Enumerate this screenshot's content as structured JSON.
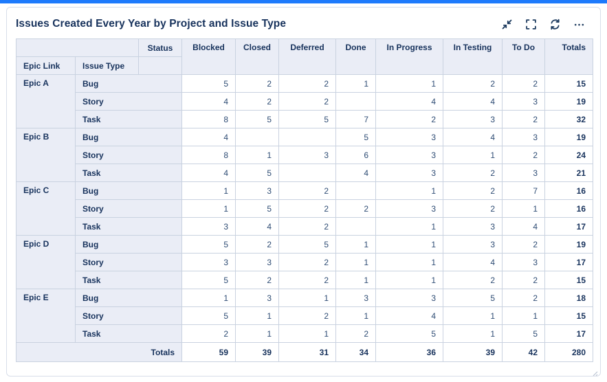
{
  "colors": {
    "accent_bar": "#1D7AFC",
    "navy_text": "#17325C",
    "number_text": "#2E4C74",
    "header_bg": "#EAEDF6",
    "grid_border": "#C9D2E0",
    "card_border": "#D8DEE9"
  },
  "header": {
    "title": "Issues Created Every Year by Project and Issue Type",
    "controls": [
      {
        "icon": "collapse-icon"
      },
      {
        "icon": "fullscreen-icon"
      },
      {
        "icon": "refresh-icon"
      },
      {
        "icon": "more-icon"
      }
    ]
  },
  "table": {
    "status_label": "Status",
    "epic_link_label": "Epic Link",
    "issue_type_label": "Issue Type",
    "columns": [
      "Blocked",
      "Closed",
      "Deferred",
      "Done",
      "In Progress",
      "In Testing",
      "To Do"
    ],
    "totals_label": "Totals",
    "groups": [
      {
        "epic": "Epic A",
        "rows": [
          {
            "type": "Bug",
            "values": [
              "5",
              "2",
              "2",
              "1",
              "1",
              "2",
              "2"
            ],
            "total": "15"
          },
          {
            "type": "Story",
            "values": [
              "4",
              "2",
              "2",
              "",
              "4",
              "4",
              "3"
            ],
            "total": "19"
          },
          {
            "type": "Task",
            "values": [
              "8",
              "5",
              "5",
              "7",
              "2",
              "3",
              "2"
            ],
            "total": "32"
          }
        ]
      },
      {
        "epic": "Epic B",
        "rows": [
          {
            "type": "Bug",
            "values": [
              "4",
              "",
              "",
              "5",
              "3",
              "4",
              "3"
            ],
            "total": "19"
          },
          {
            "type": "Story",
            "values": [
              "8",
              "1",
              "3",
              "6",
              "3",
              "1",
              "2"
            ],
            "total": "24"
          },
          {
            "type": "Task",
            "values": [
              "4",
              "5",
              "",
              "4",
              "3",
              "2",
              "3"
            ],
            "total": "21"
          }
        ]
      },
      {
        "epic": "Epic C",
        "rows": [
          {
            "type": "Bug",
            "values": [
              "1",
              "3",
              "2",
              "",
              "1",
              "2",
              "7"
            ],
            "total": "16"
          },
          {
            "type": "Story",
            "values": [
              "1",
              "5",
              "2",
              "2",
              "3",
              "2",
              "1"
            ],
            "total": "16"
          },
          {
            "type": "Task",
            "values": [
              "3",
              "4",
              "2",
              "",
              "1",
              "3",
              "4"
            ],
            "total": "17"
          }
        ]
      },
      {
        "epic": "Epic D",
        "rows": [
          {
            "type": "Bug",
            "values": [
              "5",
              "2",
              "5",
              "1",
              "1",
              "3",
              "2"
            ],
            "total": "19"
          },
          {
            "type": "Story",
            "values": [
              "3",
              "3",
              "2",
              "1",
              "1",
              "4",
              "3"
            ],
            "total": "17"
          },
          {
            "type": "Task",
            "values": [
              "5",
              "2",
              "2",
              "1",
              "1",
              "2",
              "2"
            ],
            "total": "15"
          }
        ]
      },
      {
        "epic": "Epic E",
        "rows": [
          {
            "type": "Bug",
            "values": [
              "1",
              "3",
              "1",
              "3",
              "3",
              "5",
              "2"
            ],
            "total": "18"
          },
          {
            "type": "Story",
            "values": [
              "5",
              "1",
              "2",
              "1",
              "4",
              "1",
              "1"
            ],
            "total": "15"
          },
          {
            "type": "Task",
            "values": [
              "2",
              "1",
              "1",
              "2",
              "5",
              "1",
              "5"
            ],
            "total": "17"
          }
        ]
      }
    ],
    "grand_totals": {
      "label": "Totals",
      "values": [
        "59",
        "39",
        "31",
        "34",
        "36",
        "39",
        "42"
      ],
      "total": "280"
    }
  },
  "chart_data": {
    "type": "table",
    "title": "Issues Created Every Year by Project and Issue Type",
    "row_dims": [
      "Epic Link",
      "Issue Type"
    ],
    "col_dim": "Status",
    "columns": [
      "Blocked",
      "Closed",
      "Deferred",
      "Done",
      "In Progress",
      "In Testing",
      "To Do",
      "Totals"
    ],
    "rows": [
      [
        "Epic A",
        "Bug",
        5,
        2,
        2,
        1,
        1,
        2,
        2,
        15
      ],
      [
        "Epic A",
        "Story",
        4,
        2,
        2,
        null,
        4,
        4,
        3,
        19
      ],
      [
        "Epic A",
        "Task",
        8,
        5,
        5,
        7,
        2,
        3,
        2,
        32
      ],
      [
        "Epic B",
        "Bug",
        4,
        null,
        null,
        5,
        3,
        4,
        3,
        19
      ],
      [
        "Epic B",
        "Story",
        8,
        1,
        3,
        6,
        3,
        1,
        2,
        24
      ],
      [
        "Epic B",
        "Task",
        4,
        5,
        null,
        4,
        3,
        2,
        3,
        21
      ],
      [
        "Epic C",
        "Bug",
        1,
        3,
        2,
        null,
        1,
        2,
        7,
        16
      ],
      [
        "Epic C",
        "Story",
        1,
        5,
        2,
        2,
        3,
        2,
        1,
        16
      ],
      [
        "Epic C",
        "Task",
        3,
        4,
        2,
        null,
        1,
        3,
        4,
        17
      ],
      [
        "Epic D",
        "Bug",
        5,
        2,
        5,
        1,
        1,
        3,
        2,
        19
      ],
      [
        "Epic D",
        "Story",
        3,
        3,
        2,
        1,
        1,
        4,
        3,
        17
      ],
      [
        "Epic D",
        "Task",
        5,
        2,
        2,
        1,
        1,
        2,
        2,
        15
      ],
      [
        "Epic E",
        "Bug",
        1,
        3,
        1,
        3,
        3,
        5,
        2,
        18
      ],
      [
        "Epic E",
        "Story",
        5,
        1,
        2,
        1,
        4,
        1,
        1,
        15
      ],
      [
        "Epic E",
        "Task",
        2,
        1,
        1,
        2,
        5,
        1,
        5,
        17
      ]
    ],
    "totals": [
      59,
      39,
      31,
      34,
      36,
      39,
      42,
      280
    ]
  }
}
